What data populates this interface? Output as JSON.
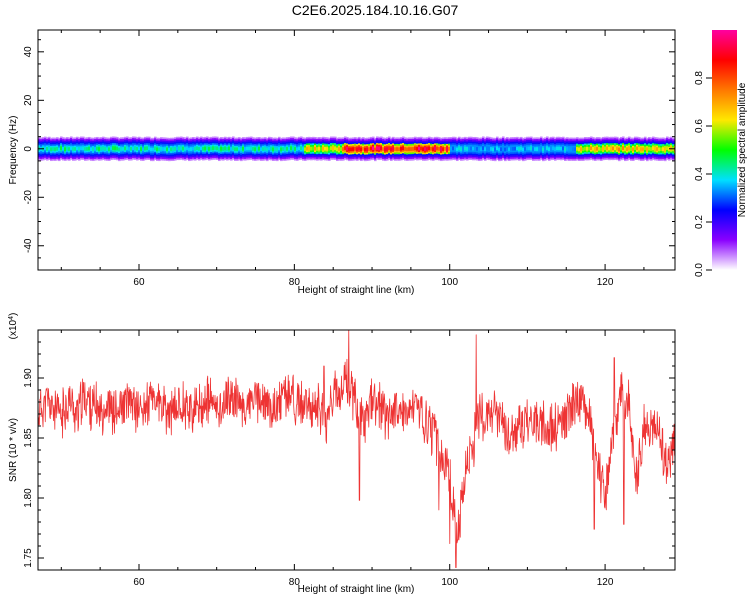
{
  "title": "C2E6.2025.184.10.16.G07",
  "chart_data": [
    {
      "type": "heatmap",
      "xlabel": "Height of straight line (km)",
      "ylabel": "Frequency (Hz)",
      "xlim": [
        47,
        129
      ],
      "ylim": [
        -50,
        49
      ],
      "x_ticks": [
        60,
        80,
        100,
        120
      ],
      "y_ticks": [
        40,
        20,
        0,
        -20,
        -40
      ],
      "colorbar": {
        "label": "Normalized spectral amplitude",
        "ticks": [
          "0.0",
          "0.2",
          "0.4",
          "0.6",
          "0.8"
        ],
        "range": [
          0,
          1
        ],
        "colors": [
          "#ffffff",
          "#8a00ff",
          "#0000ff",
          "#00e0ff",
          "#00ff00",
          "#ffe800",
          "#ff7800",
          "#ff0000",
          "#ff00a0"
        ]
      },
      "band_center_hz": 0,
      "band_segments": [
        {
          "from_km": 47,
          "to_km": 81,
          "peak": 0.42
        },
        {
          "from_km": 81,
          "to_km": 86,
          "peak": 0.62
        },
        {
          "from_km": 86,
          "to_km": 100,
          "peak": 0.88
        },
        {
          "from_km": 100,
          "to_km": 116,
          "peak": 0.35
        },
        {
          "from_km": 116,
          "to_km": 129,
          "peak": 0.65
        }
      ]
    },
    {
      "type": "line",
      "xlabel": "Height of straight line (km)",
      "ylabel": "SNR (10 * v/v)",
      "scale_label": "(x10^4)",
      "xlim": [
        47,
        129
      ],
      "ylim": [
        1.74,
        1.94
      ],
      "x_ticks": [
        60,
        80,
        100,
        120
      ],
      "y_ticks": [
        "1.75",
        "1.80",
        "1.85",
        "1.90"
      ],
      "line_color": "#ee3333",
      "series": [
        {
          "x": [
            47,
            48,
            49,
            50,
            51,
            52,
            53,
            54,
            55,
            56,
            57,
            58,
            59,
            60,
            61,
            62,
            63,
            64,
            65,
            66,
            67,
            68,
            69,
            70,
            71,
            72,
            73,
            74,
            75,
            76,
            77,
            78,
            79,
            80,
            81,
            82,
            83,
            84,
            85,
            86,
            87,
            88,
            89,
            90,
            91,
            92,
            93,
            94,
            95,
            96,
            97,
            98,
            99,
            100,
            101,
            102,
            103,
            104,
            105,
            106,
            107,
            108,
            109,
            110,
            111,
            112,
            113,
            114,
            115,
            116,
            117,
            118,
            119,
            120,
            121,
            122,
            123,
            124,
            125,
            126,
            127,
            128,
            129
          ],
          "y": [
            1.872,
            1.88,
            1.875,
            1.868,
            1.882,
            1.87,
            1.885,
            1.876,
            1.873,
            1.878,
            1.87,
            1.875,
            1.88,
            1.872,
            1.878,
            1.883,
            1.874,
            1.869,
            1.877,
            1.879,
            1.871,
            1.876,
            1.882,
            1.873,
            1.88,
            1.886,
            1.878,
            1.875,
            1.884,
            1.88,
            1.872,
            1.878,
            1.888,
            1.884,
            1.876,
            1.872,
            1.88,
            1.864,
            1.882,
            1.893,
            1.898,
            1.876,
            1.862,
            1.88,
            1.875,
            1.868,
            1.878,
            1.866,
            1.872,
            1.874,
            1.862,
            1.855,
            1.832,
            1.815,
            1.772,
            1.822,
            1.845,
            1.872,
            1.862,
            1.875,
            1.858,
            1.848,
            1.858,
            1.862,
            1.866,
            1.86,
            1.856,
            1.861,
            1.866,
            1.878,
            1.882,
            1.868,
            1.83,
            1.8,
            1.846,
            1.892,
            1.88,
            1.815,
            1.858,
            1.864,
            1.848,
            1.825,
            1.853
          ]
        }
      ],
      "spikes": [
        {
          "x": 87.0,
          "y": 1.942
        },
        {
          "x": 100.0,
          "y": 1.762
        },
        {
          "x": 100.8,
          "y": 1.742
        },
        {
          "x": 103.4,
          "y": 1.936
        },
        {
          "x": 98.6,
          "y": 1.79
        },
        {
          "x": 118.6,
          "y": 1.774
        },
        {
          "x": 122.4,
          "y": 1.778
        },
        {
          "x": 121.2,
          "y": 1.917
        },
        {
          "x": 83.8,
          "y": 1.91
        },
        {
          "x": 88.4,
          "y": 1.798
        }
      ]
    }
  ]
}
